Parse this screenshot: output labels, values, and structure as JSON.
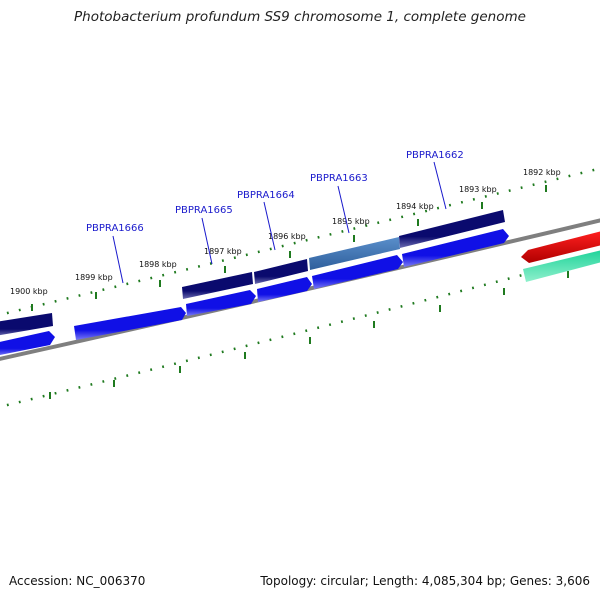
{
  "title": "Photobacterium profundum SS9 chromosome 1, complete genome",
  "footer": {
    "accession": "Accession: NC_006370",
    "summary": "Topology: circular; Length: 4,085,304 bp; Genes: 3,606"
  },
  "kbp_labels": [
    {
      "text": "1900 kbp"
    },
    {
      "text": "1899 kbp"
    },
    {
      "text": "1898 kbp"
    },
    {
      "text": "1897 kbp"
    },
    {
      "text": "1896 kbp"
    },
    {
      "text": "1895 kbp"
    },
    {
      "text": "1894 kbp"
    },
    {
      "text": "1893 kbp"
    },
    {
      "text": "1892 kbp"
    }
  ],
  "gene_labels": [
    {
      "text": "PBPRA1666"
    },
    {
      "text": "PBPRA1665"
    },
    {
      "text": "PBPRA1664"
    },
    {
      "text": "PBPRA1663"
    },
    {
      "text": "PBPRA1662"
    }
  ],
  "colors": {
    "gene_dark": "#0a0a6e",
    "gene_blue": "#1010e6",
    "gene_highlight": "#3f77b8",
    "red_feature": "#e60000",
    "green_feature": "#19c98e",
    "backbone": "#7f7f7f",
    "ticks": "#1f7a1f",
    "label": "#1a1acc"
  }
}
